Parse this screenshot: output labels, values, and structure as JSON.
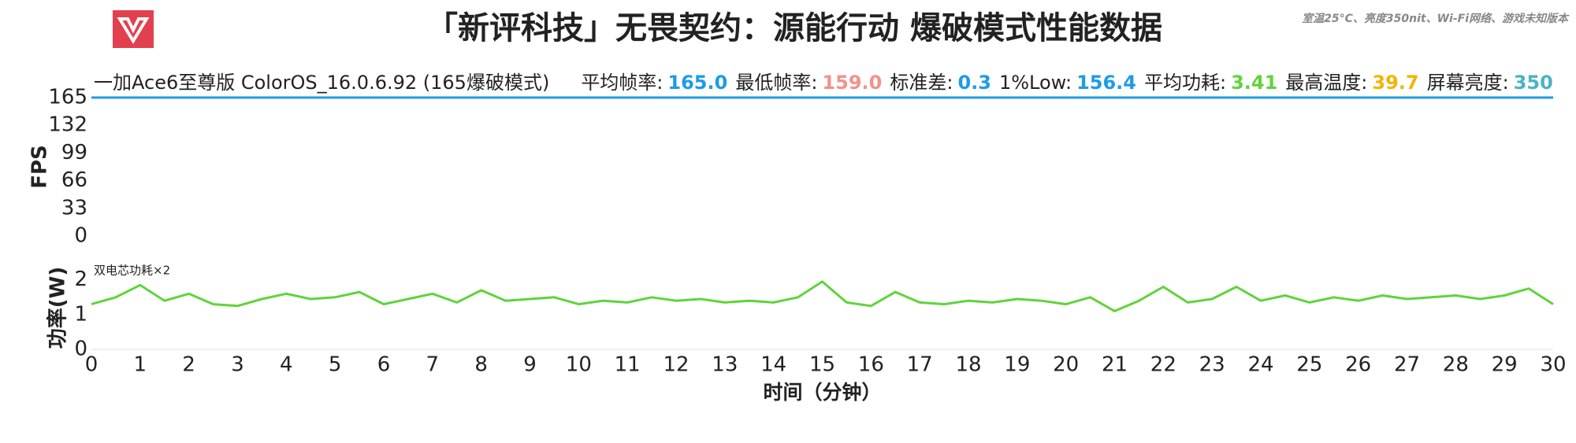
{
  "header": {
    "title": "「新评科技」无畏契约：源能行动 爆破模式性能数据",
    "subtitle": "室温25°C、亮度350nit、Wi-Fi网络、游戏未知版本"
  },
  "chart_data": [
    {
      "type": "line",
      "device": "一加Ace6至尊版 ColorOS_16.0.6.92 (165爆破模式)",
      "stats": [
        {
          "label": "平均帧率:",
          "value": "165.0",
          "color": "#1e9be9"
        },
        {
          "label": "最低帧率:",
          "value": "159.0",
          "color": "#f0938a"
        },
        {
          "label": "标准差:",
          "value": "0.3",
          "color": "#1e9be9"
        },
        {
          "label": "1%Low:",
          "value": "156.4",
          "color": "#1e9be9"
        },
        {
          "label": "平均功耗:",
          "value": "3.41",
          "color": "#5fd43a"
        },
        {
          "label": "最高温度:",
          "value": "39.7",
          "color": "#f5b400"
        },
        {
          "label": "屏幕亮度:",
          "value": "350",
          "color": "#4bb3c4"
        }
      ],
      "ylabel": "FPS",
      "x": [
        0,
        1,
        2,
        3,
        4,
        5,
        6,
        7,
        8,
        9,
        10,
        11,
        12,
        13,
        14,
        15,
        16,
        17,
        18,
        19,
        20,
        21,
        22,
        23,
        24,
        25,
        26,
        27,
        28,
        29,
        30
      ],
      "series": [
        {
          "color": "#1e9be9",
          "values": [
            165,
            165,
            165,
            165,
            165,
            165,
            165,
            165,
            165,
            165,
            165,
            165,
            165,
            165,
            165,
            165,
            165,
            165,
            165,
            165,
            165,
            165,
            165,
            165,
            165,
            165,
            165,
            165,
            165,
            165,
            165
          ]
        }
      ],
      "xlim": [
        0,
        30
      ],
      "ylim": [
        0,
        165
      ],
      "yticks": [
        0,
        33,
        66,
        99,
        132,
        165
      ]
    },
    {
      "type": "line",
      "annotation": "双电芯功耗×2",
      "ylabel": "功率(W)",
      "xlabel": "时间（分钟）",
      "x": [
        0,
        0.5,
        1,
        1.5,
        2,
        2.5,
        3,
        3.5,
        4,
        4.5,
        5,
        5.5,
        6,
        6.5,
        7,
        7.5,
        8,
        8.5,
        9,
        9.5,
        10,
        10.5,
        11,
        11.5,
        12,
        12.5,
        13,
        13.5,
        14,
        14.5,
        15,
        15.5,
        16,
        16.5,
        17,
        17.5,
        18,
        18.5,
        19,
        19.5,
        20,
        20.5,
        21,
        21.5,
        22,
        22.5,
        23,
        23.5,
        24,
        24.5,
        25,
        25.5,
        26,
        26.5,
        27,
        27.5,
        28,
        28.5,
        29,
        29.5,
        30
      ],
      "series": [
        {
          "color": "#5fd43a",
          "values": [
            1.3,
            1.5,
            1.85,
            1.4,
            1.6,
            1.3,
            1.25,
            1.45,
            1.6,
            1.45,
            1.5,
            1.65,
            1.3,
            1.45,
            1.6,
            1.35,
            1.7,
            1.4,
            1.45,
            1.5,
            1.3,
            1.4,
            1.35,
            1.5,
            1.4,
            1.45,
            1.35,
            1.4,
            1.35,
            1.5,
            1.95,
            1.35,
            1.25,
            1.65,
            1.35,
            1.3,
            1.4,
            1.35,
            1.45,
            1.4,
            1.3,
            1.5,
            1.1,
            1.4,
            1.8,
            1.35,
            1.45,
            1.8,
            1.4,
            1.55,
            1.35,
            1.5,
            1.4,
            1.55,
            1.45,
            1.5,
            1.55,
            1.45,
            1.55,
            1.75,
            1.3
          ]
        }
      ],
      "xlim": [
        0,
        30
      ],
      "ylim": [
        0,
        2.4
      ],
      "yticks": [
        0,
        1,
        2
      ],
      "xticks": [
        0,
        1,
        2,
        3,
        4,
        5,
        6,
        7,
        8,
        9,
        10,
        11,
        12,
        13,
        14,
        15,
        16,
        17,
        18,
        19,
        20,
        21,
        22,
        23,
        24,
        25,
        26,
        27,
        28,
        29,
        30
      ]
    }
  ]
}
